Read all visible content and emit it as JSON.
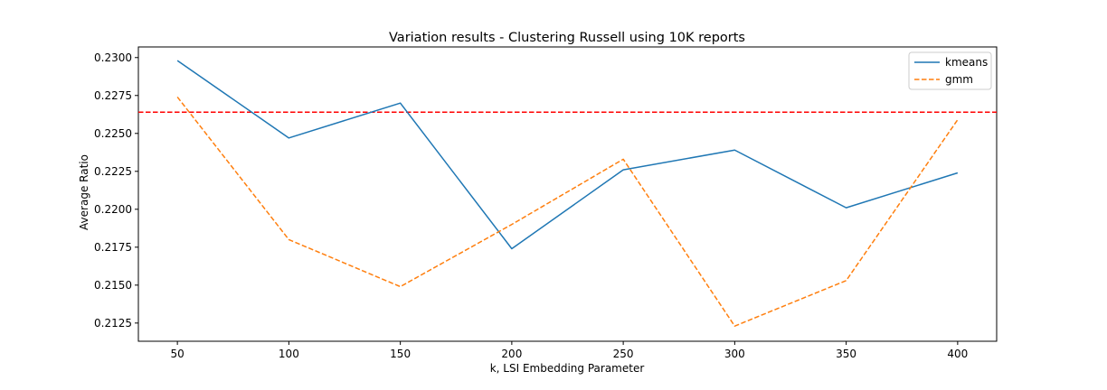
{
  "chart_data": {
    "type": "line",
    "title": "Variation results - Clustering Russell using 10K reports",
    "xlabel": "k, LSI Embedding Parameter",
    "ylabel": "Average Ratio",
    "x": [
      50,
      100,
      150,
      200,
      250,
      300,
      350,
      400
    ],
    "xticks": [
      "50",
      "100",
      "150",
      "200",
      "250",
      "300",
      "350",
      "400"
    ],
    "yticks": [
      "0.2125",
      "0.2150",
      "0.2175",
      "0.2200",
      "0.2225",
      "0.2250",
      "0.2275",
      "0.2300"
    ],
    "xlim": [
      32.5,
      417.5
    ],
    "ylim": [
      0.2113,
      0.2307
    ],
    "series": [
      {
        "name": "kmeans",
        "color": "#1f77b4",
        "dash": "solid",
        "values": [
          0.2298,
          0.2247,
          0.227,
          0.2174,
          0.2226,
          0.2239,
          0.2201,
          0.2224
        ]
      },
      {
        "name": "gmm",
        "color": "#ff7f0e",
        "dash": "dashed",
        "values": [
          0.2274,
          0.218,
          0.2149,
          0.219,
          0.2233,
          0.2123,
          0.2153,
          0.2259
        ]
      }
    ],
    "reference_line": {
      "y": 0.2264,
      "color": "#ff0000",
      "style": "dashed"
    },
    "legend_position": "top-right",
    "grid": false
  }
}
